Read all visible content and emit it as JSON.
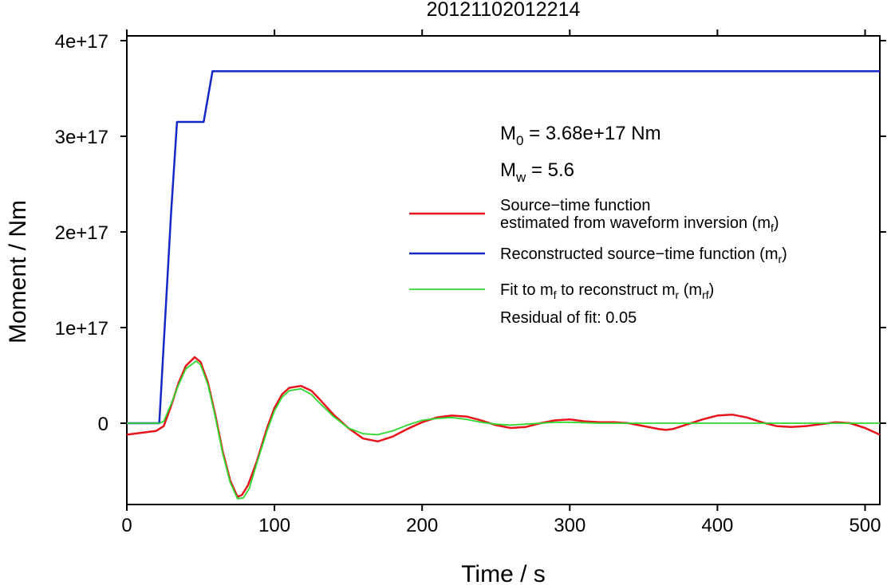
{
  "chart_data": {
    "type": "line",
    "title": "20121102012214",
    "xlabel": "Time / s",
    "ylabel": "Moment / Nm",
    "xlim": [
      0,
      510
    ],
    "ylim": [
      -8.5e+16,
      4.05e+17
    ],
    "x_ticks": [
      0,
      100,
      200,
      300,
      400,
      500
    ],
    "x_tick_labels": [
      "0",
      "100",
      "200",
      "300",
      "400",
      "500"
    ],
    "y_ticks": [
      0,
      1e+17,
      2e+17,
      3e+17,
      4e+17
    ],
    "y_tick_labels": [
      "0",
      "1e+17",
      "2e+17",
      "3e+17",
      "4e+17"
    ],
    "grid": false,
    "legend_position": "right",
    "annotations": {
      "m0": {
        "symbol": "M",
        "sub": "0",
        "text": " = 3.68e+17 Nm"
      },
      "mw": {
        "symbol": "M",
        "sub": "w",
        "text": " = 5.6"
      },
      "residual": "Residual of fit: 0.05"
    },
    "legend": [
      {
        "color": "#e8141b",
        "width": 2.5,
        "lines": [
          [
            {
              "t": "Source−time function"
            }
          ],
          [
            {
              "t": "estimated from waveform inversion (m"
            },
            {
              "t": "f",
              "sub": true
            },
            {
              "t": ")"
            }
          ]
        ]
      },
      {
        "color": "#1428c8",
        "width": 2.5,
        "lines": [
          [
            {
              "t": "Reconstructed source−time function (m"
            },
            {
              "t": "r",
              "sub": true
            },
            {
              "t": ")"
            }
          ]
        ]
      },
      {
        "color": "#2ed82e",
        "width": 1.8,
        "lines": [
          [
            {
              "t": "Fit to m"
            },
            {
              "t": "f",
              "sub": true
            },
            {
              "t": " to reconstruct m"
            },
            {
              "t": "r",
              "sub": true
            },
            {
              "t": " (m"
            },
            {
              "t": "rf",
              "sub": true
            },
            {
              "t": ")"
            }
          ]
        ]
      }
    ],
    "series": [
      {
        "color": "#e8141b",
        "width": 2.5,
        "x": [
          0,
          10,
          20,
          25,
          30,
          35,
          40,
          46,
          50,
          55,
          60,
          65,
          70,
          75,
          78,
          82,
          88,
          95,
          100,
          105,
          110,
          118,
          125,
          130,
          140,
          150,
          160,
          170,
          180,
          190,
          200,
          210,
          220,
          230,
          240,
          250,
          260,
          270,
          280,
          290,
          300,
          310,
          320,
          330,
          340,
          350,
          360,
          365,
          370,
          380,
          390,
          400,
          410,
          420,
          430,
          440,
          450,
          460,
          470,
          480,
          490,
          500,
          510
        ],
        "y": [
          -1.2e+16,
          -1e+16,
          -8000000000000000.0,
          -3000000000000000.0,
          1.8e+16,
          4.2e+16,
          6e+16,
          6.9e+16,
          6.4e+16,
          4.2e+16,
          8000000000000000.0,
          -3e+16,
          -6e+16,
          -7.7e+16,
          -7.5e+16,
          -6.5e+16,
          -4e+16,
          -5000000000000000.0,
          1.6e+16,
          3e+16,
          3.7e+16,
          3.9e+16,
          3.4e+16,
          2.6e+16,
          9000000000000000.0,
          -5000000000000000.0,
          -1.6e+16,
          -1.9e+16,
          -1.4e+16,
          -6000000000000000.0,
          1000000000000000.0,
          6000000000000000.0,
          8000000000000000.0,
          7000000000000000.0,
          3000000000000000.0,
          -2000000000000000.0,
          -5000000000000000.0,
          -4000000000000000.0,
          0,
          3000000000000000.0,
          4000000000000000.0,
          2000000000000000.0,
          1000000000000000.0,
          1000000000000000.0,
          0,
          -3000000000000000.0,
          -6000000000000000.0,
          -7000000000000000.0,
          -6000000000000000.0,
          -1000000000000000.0,
          4000000000000000.0,
          8000000000000000.0,
          9000000000000000.0,
          6000000000000000.0,
          1000000000000000.0,
          -3000000000000000.0,
          -4000000000000000.0,
          -3000000000000000.0,
          -1000000000000000.0,
          1000000000000000.0,
          0,
          -5000000000000000.0,
          -1.2e+16
        ]
      },
      {
        "color": "#1428c8",
        "width": 2.5,
        "x": [
          0,
          22,
          30,
          34,
          52,
          58,
          510
        ],
        "y": [
          0,
          0,
          2.2e+17,
          3.15e+17,
          3.15e+17,
          3.68e+17,
          3.68e+17
        ]
      },
      {
        "color": "#2ed82e",
        "width": 1.8,
        "x": [
          0,
          22,
          25,
          30,
          35,
          40,
          47,
          50,
          55,
          60,
          65,
          70,
          75,
          79,
          83,
          88,
          95,
          100,
          105,
          110,
          118,
          125,
          130,
          140,
          150,
          160,
          170,
          180,
          190,
          200,
          210,
          220,
          230,
          240,
          250,
          260,
          270,
          280,
          290,
          300,
          320,
          350,
          400,
          450,
          510
        ],
        "y": [
          0,
          0,
          2000000000000000.0,
          2e+16,
          4e+16,
          5.7e+16,
          6.5e+16,
          6.1e+16,
          4e+16,
          6000000000000000.0,
          -3.2e+16,
          -6.2e+16,
          -7.9e+16,
          -7.8e+16,
          -6.8e+16,
          -4.2e+16,
          -8000000000000000.0,
          1.3e+16,
          2.7e+16,
          3.4e+16,
          3.6e+16,
          3e+16,
          2.2e+16,
          7000000000000000.0,
          -5000000000000000.0,
          -1.1e+16,
          -1.2e+16,
          -8000000000000000.0,
          -2000000000000000.0,
          3000000000000000.0,
          5000000000000000.0,
          6000000000000000.0,
          4000000000000000.0,
          1000000000000000.0,
          -1000000000000000.0,
          -2000000000000000.0,
          -1000000000000000.0,
          0,
          1000000000000000.0,
          1000000000000000.0,
          0,
          0,
          0,
          0,
          0
        ]
      }
    ]
  }
}
